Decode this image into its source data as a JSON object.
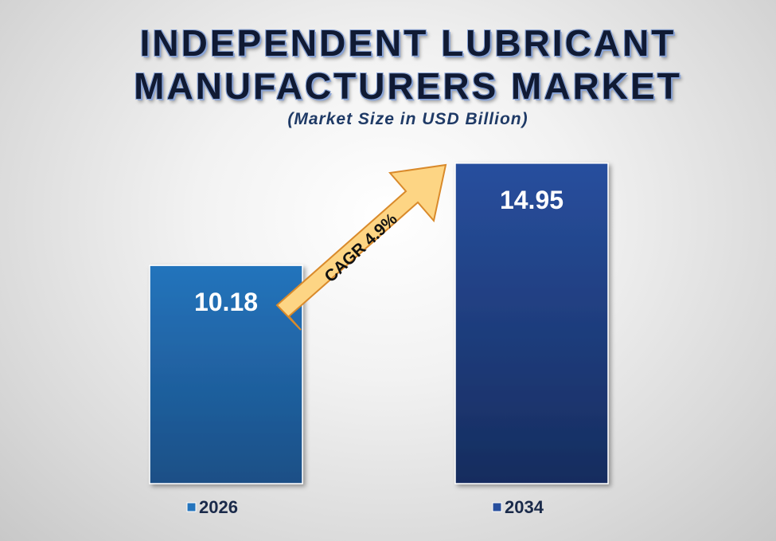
{
  "chart_data": {
    "type": "bar",
    "title_lines": [
      "INDEPENDENT LUBRICANT",
      "MANUFACTURERS MARKET"
    ],
    "subtitle": "(Market Size in USD Billion)",
    "categories": [
      "2026",
      "2034"
    ],
    "values": [
      10.18,
      14.95
    ],
    "value_labels": [
      "10.18",
      "14.95"
    ],
    "ylim": [
      0,
      15.5
    ],
    "grid": false,
    "legend_position": "bottom",
    "annotation": "CAGR  4.9%",
    "colors": {
      "bar_2026": "#2474bc",
      "bar_2026_dark": "#1b4f86",
      "bar_2034": "#284f9e",
      "bar_2034_dark": "#162c5e",
      "arrow_fill": "#fdd584",
      "arrow_stroke": "#d98a2b"
    }
  }
}
